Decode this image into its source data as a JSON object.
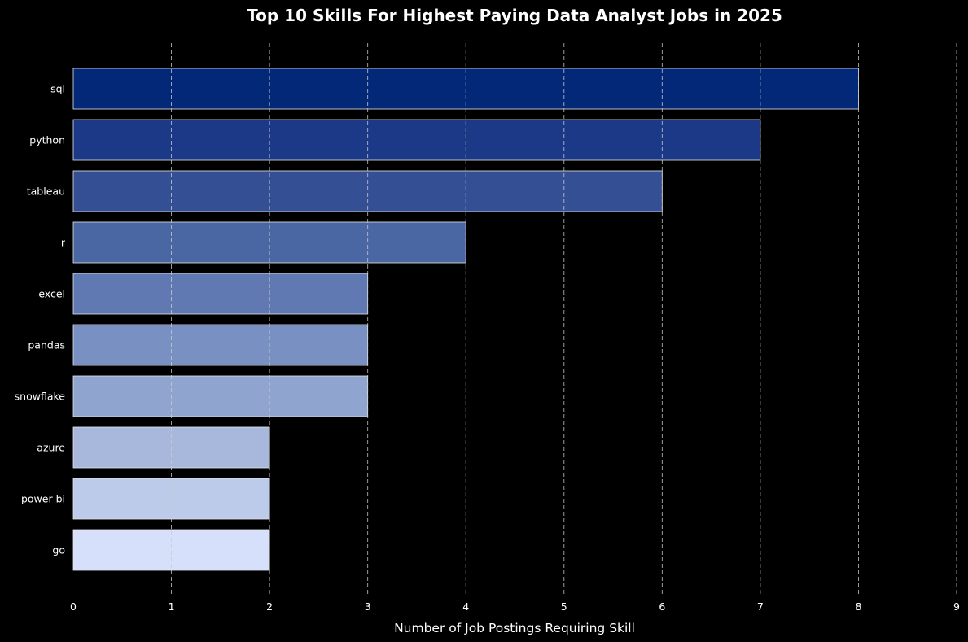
{
  "chart_data": {
    "type": "bar",
    "orientation": "horizontal",
    "title": "Top 10 Skills For Highest Paying Data Analyst Jobs in 2025",
    "xlabel": "Number of Job Postings Requiring Skill",
    "ylabel": "",
    "categories": [
      "sql",
      "python",
      "tableau",
      "r",
      "excel",
      "pandas",
      "snowflake",
      "azure",
      "power bi",
      "go"
    ],
    "values": [
      8,
      7,
      6,
      4,
      3,
      3,
      3,
      2,
      2,
      2
    ],
    "xlim": [
      0,
      9
    ],
    "x_ticks": [
      "0",
      "1",
      "2",
      "3",
      "4",
      "5",
      "6",
      "7",
      "8",
      "9"
    ],
    "grid": "vertical dashed",
    "legend": "none",
    "colors": [
      "#042878",
      "#1b3987",
      "#344f93",
      "#4a66a3",
      "#6079b3",
      "#7890c2",
      "#90a4d0",
      "#a8b8dd",
      "#bccbea",
      "#d6e0fa"
    ],
    "background": "#000000",
    "grid_color": "#cccccc",
    "bar_edge_color": "#e6e6e6"
  }
}
